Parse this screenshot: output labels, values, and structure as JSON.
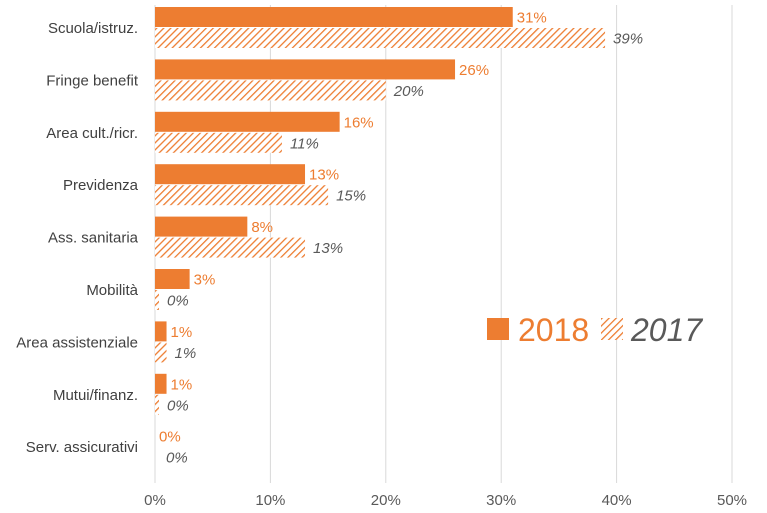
{
  "chart_data": {
    "type": "bar",
    "orientation": "horizontal",
    "categories": [
      "Scuola/istruz.",
      "Fringe benefit",
      "Area cult./ricr.",
      "Previdenza",
      "Ass. sanitaria",
      "Mobilità",
      "Area assistenziale",
      "Mutui/finanz.",
      "Serv. assicurativi"
    ],
    "series": [
      {
        "name": "2018",
        "values": [
          31,
          26,
          16,
          13,
          8,
          3,
          1,
          1,
          0
        ],
        "labels": [
          "31%",
          "26%",
          "16%",
          "13%",
          "8%",
          "3%",
          "1%",
          "1%",
          "0%"
        ],
        "color": "#ed7d31",
        "fill": "solid"
      },
      {
        "name": "2017",
        "values": [
          39,
          20,
          11,
          15,
          13,
          0,
          1,
          0,
          0
        ],
        "labels": [
          "39%",
          "20%",
          "11%",
          "15%",
          "13%",
          "0%",
          "1%",
          "0%",
          "0%"
        ],
        "color": "#ed7d31",
        "fill": "hatched"
      }
    ],
    "x_ticks": [
      "0%",
      "10%",
      "20%",
      "30%",
      "40%",
      "50%"
    ],
    "xlim": [
      0,
      50
    ],
    "grid": "vertical",
    "legend": "right"
  }
}
